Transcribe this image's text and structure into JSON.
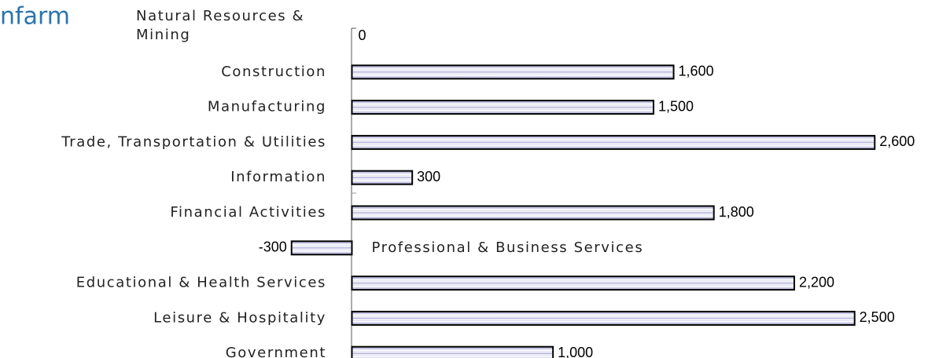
{
  "chart_data": {
    "type": "hbar",
    "title": "nfarm",
    "categories": [
      "Natural Resources & Mining",
      "Construction",
      "Manufacturing",
      "Trade, Transportation & Utilities",
      "Information",
      "Financial Activities",
      "Professional & Business Services",
      "Educational & Health Services",
      "Leisure & Hospitality",
      "Government"
    ],
    "values": [
      0,
      1600,
      1500,
      2600,
      300,
      1800,
      -300,
      2200,
      2500,
      1000
    ],
    "value_labels": [
      "0",
      "1,600",
      "1,500",
      "2,600",
      "300",
      "1,800",
      "-300",
      "2,200",
      "2,500",
      "1,000"
    ],
    "color": "#b4b4dc",
    "xlim": [
      -1750,
      2865
    ]
  }
}
